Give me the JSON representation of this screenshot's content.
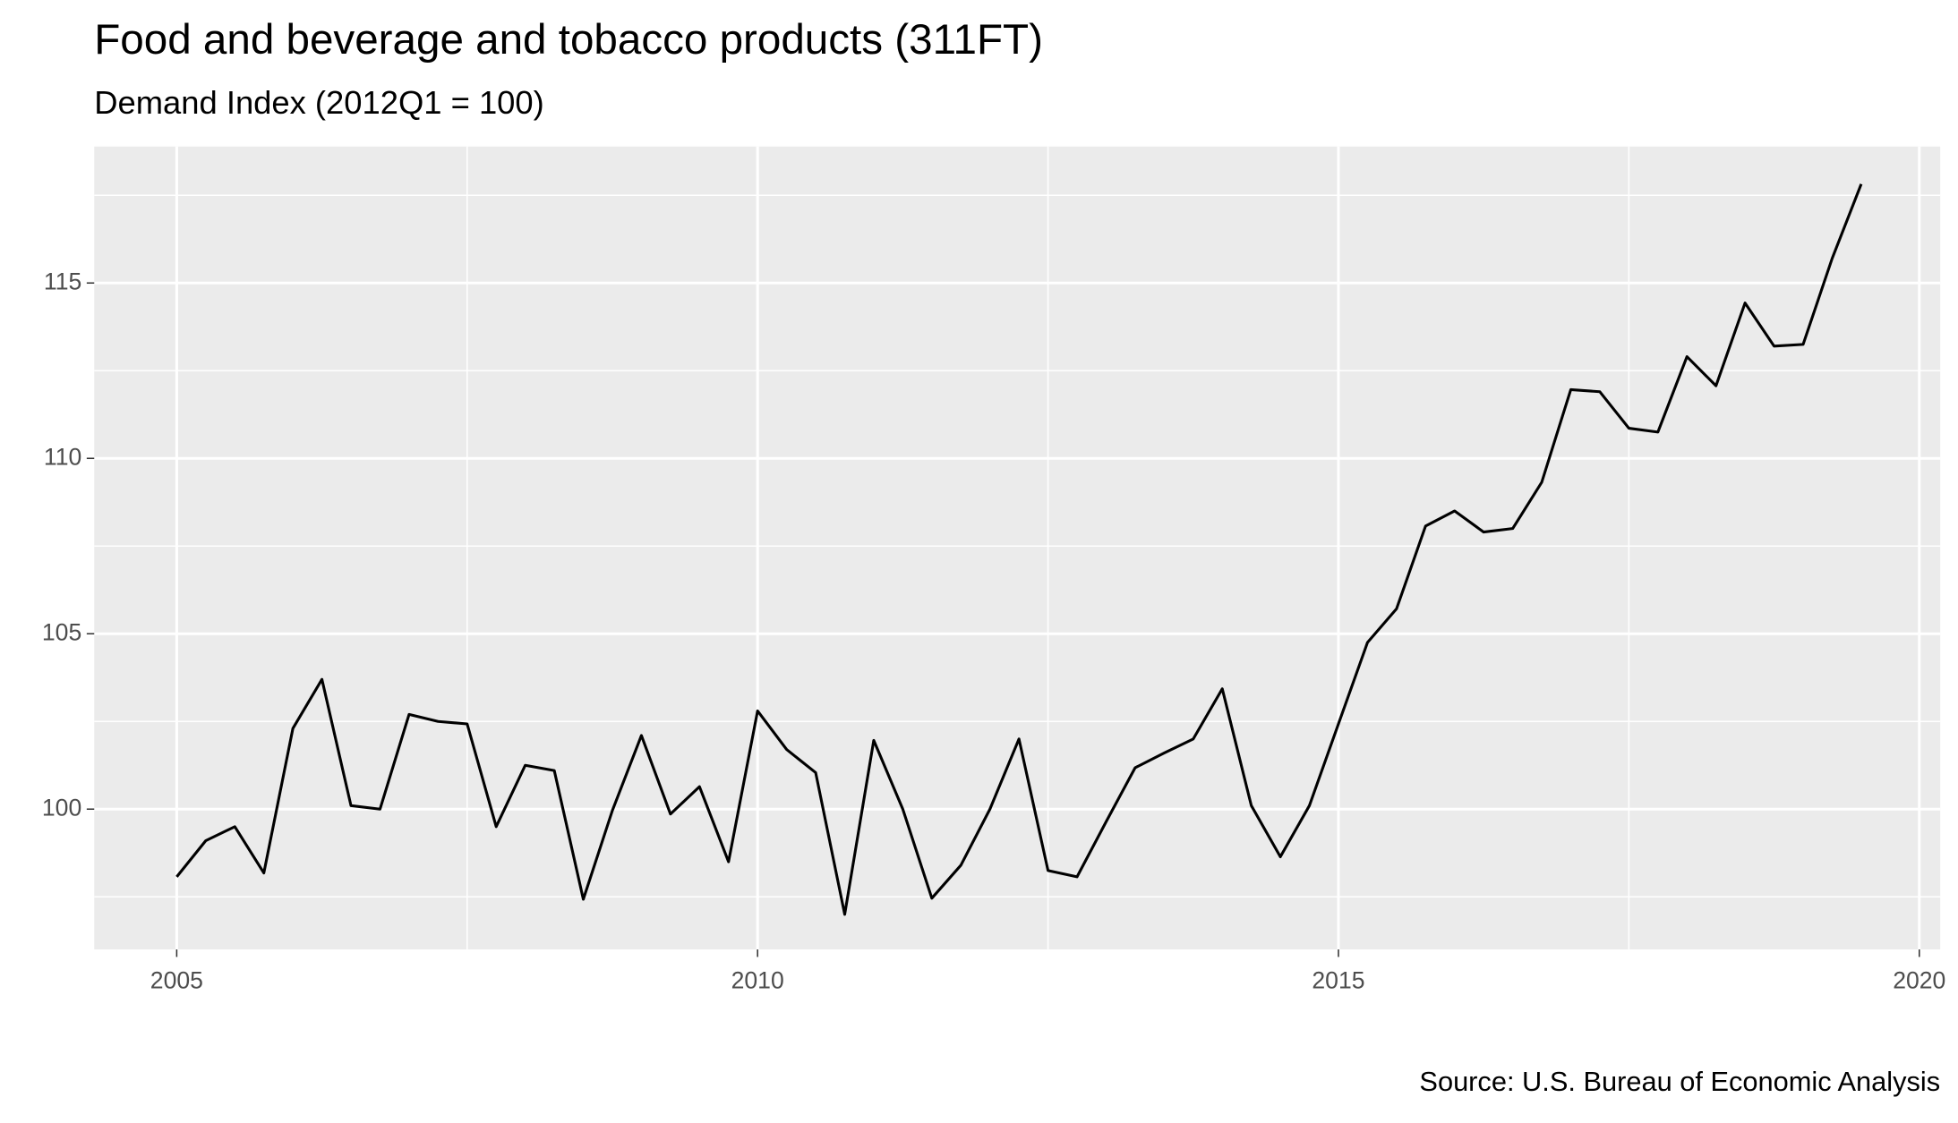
{
  "chart_data": {
    "type": "line",
    "title": "Food and beverage and tobacco products (311FT)",
    "subtitle": "Demand Index (2012Q1 = 100)",
    "caption": "Source: U.S. Bureau of Economic Analysis",
    "x": [
      2005,
      2005.25,
      2005.5,
      2005.75,
      2006,
      2006.25,
      2006.5,
      2006.75,
      2007,
      2007.25,
      2007.5,
      2007.75,
      2008,
      2008.25,
      2008.5,
      2008.75,
      2009,
      2009.25,
      2009.5,
      2009.75,
      2010,
      2010.25,
      2010.5,
      2010.75,
      2011,
      2011.25,
      2011.5,
      2011.75,
      2012,
      2012.25,
      2012.5,
      2012.75,
      2013,
      2013.25,
      2013.5,
      2013.75,
      2014,
      2014.25,
      2014.5,
      2014.75,
      2015,
      2015.25,
      2015.5,
      2015.75,
      2016,
      2016.25,
      2016.5,
      2016.75,
      2017,
      2017.25,
      2017.5,
      2017.75,
      2018,
      2018.25,
      2018.5,
      2018.75,
      2019,
      2019.25,
      2019.5
    ],
    "series": [
      {
        "color": "#000000",
        "values": [
          98.07,
          99.1,
          99.5,
          98.18,
          102.3,
          103.7,
          100.1,
          100.0,
          102.7,
          102.5,
          102.43,
          99.5,
          101.25,
          101.1,
          97.43,
          99.96,
          102.1,
          99.86,
          100.64,
          98.5,
          102.8,
          101.7,
          101.04,
          97.0,
          101.96,
          100.0,
          97.46,
          98.4,
          100.0,
          102.0,
          98.25,
          98.07,
          99.64,
          101.18,
          101.6,
          102.0,
          103.43,
          100.1,
          98.64,
          100.1,
          102.43,
          104.75,
          105.71,
          108.07,
          108.5,
          107.9,
          108.0,
          109.32,
          111.96,
          111.9,
          110.86,
          110.75,
          112.9,
          112.07,
          114.43,
          113.2,
          113.25,
          115.7,
          117.82
        ]
      }
    ],
    "xlim": [
      2004.29,
      2020.18
    ],
    "xticks": [
      2005,
      2010,
      2015,
      2020
    ],
    "ylim": [
      96.0,
      118.89
    ],
    "yticks": [
      100,
      105,
      110,
      115
    ],
    "x_minor_ticks": [
      2007.5,
      2012.5,
      2017.5
    ],
    "y_minor_ticks": [
      97.5,
      102.5,
      107.5,
      112.5,
      117.5
    ],
    "grid": true
  }
}
